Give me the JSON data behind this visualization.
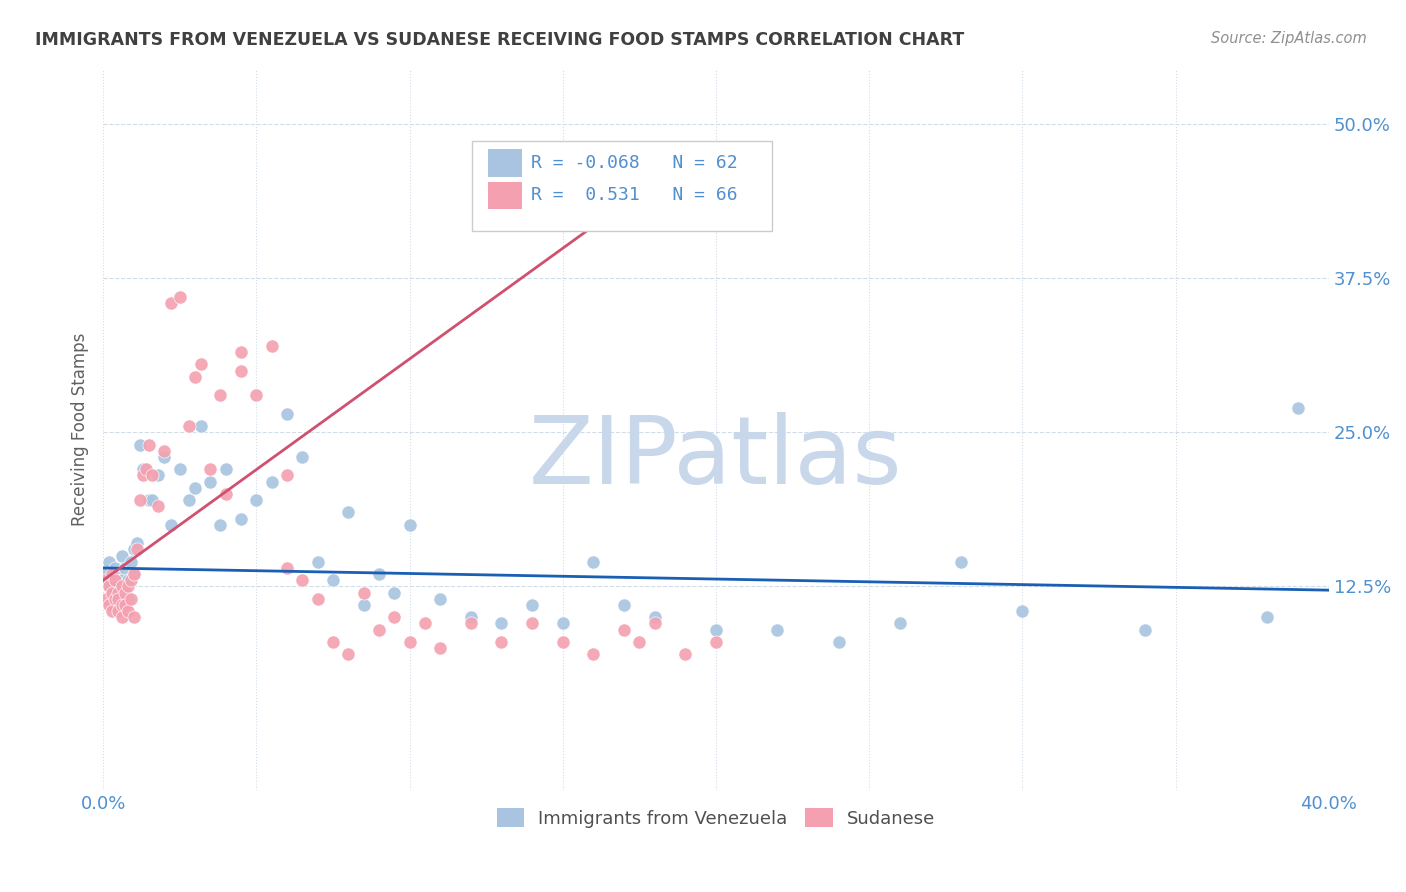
{
  "title": "IMMIGRANTS FROM VENEZUELA VS SUDANESE RECEIVING FOOD STAMPS CORRELATION CHART",
  "source": "Source: ZipAtlas.com",
  "ylabel": "Receiving Food Stamps",
  "ytick_labels": [
    "12.5%",
    "25.0%",
    "37.5%",
    "50.0%"
  ],
  "ytick_values": [
    0.125,
    0.25,
    0.375,
    0.5
  ],
  "xmin": 0.0,
  "xmax": 0.4,
  "ymin": -0.04,
  "ymax": 0.545,
  "legend_label1": "Immigrants from Venezuela",
  "legend_label2": "Sudanese",
  "R1": "-0.068",
  "N1": "62",
  "R2": "0.531",
  "N2": "66",
  "color1": "#a8c4e0",
  "color2": "#f4a0b0",
  "line_color1": "#1a5fb4",
  "line_color2": "#d05070",
  "watermark": "ZIPatlas",
  "watermark_color": "#c8d8ea",
  "background_color": "#ffffff",
  "grid_color": "#d0dce8",
  "title_color": "#404040",
  "axis_label_color": "#5090d0",
  "venezuela_x": [
    0.001,
    0.002,
    0.002,
    0.003,
    0.003,
    0.004,
    0.004,
    0.005,
    0.005,
    0.006,
    0.006,
    0.007,
    0.007,
    0.008,
    0.008,
    0.009,
    0.01,
    0.01,
    0.011,
    0.012,
    0.013,
    0.015,
    0.016,
    0.018,
    0.02,
    0.022,
    0.025,
    0.028,
    0.03,
    0.032,
    0.035,
    0.038,
    0.04,
    0.045,
    0.05,
    0.055,
    0.06,
    0.065,
    0.07,
    0.075,
    0.08,
    0.085,
    0.09,
    0.095,
    0.1,
    0.11,
    0.12,
    0.13,
    0.14,
    0.15,
    0.16,
    0.17,
    0.18,
    0.2,
    0.22,
    0.24,
    0.26,
    0.28,
    0.3,
    0.34,
    0.38,
    0.39
  ],
  "venezuela_y": [
    0.135,
    0.125,
    0.145,
    0.13,
    0.12,
    0.14,
    0.115,
    0.135,
    0.12,
    0.13,
    0.15,
    0.125,
    0.14,
    0.13,
    0.115,
    0.145,
    0.135,
    0.155,
    0.16,
    0.24,
    0.22,
    0.195,
    0.195,
    0.215,
    0.23,
    0.175,
    0.22,
    0.195,
    0.205,
    0.255,
    0.21,
    0.175,
    0.22,
    0.18,
    0.195,
    0.21,
    0.265,
    0.23,
    0.145,
    0.13,
    0.185,
    0.11,
    0.135,
    0.12,
    0.175,
    0.115,
    0.1,
    0.095,
    0.11,
    0.095,
    0.145,
    0.11,
    0.1,
    0.09,
    0.09,
    0.08,
    0.095,
    0.145,
    0.105,
    0.09,
    0.1,
    0.27
  ],
  "sudanese_x": [
    0.001,
    0.001,
    0.002,
    0.002,
    0.003,
    0.003,
    0.003,
    0.004,
    0.004,
    0.005,
    0.005,
    0.005,
    0.006,
    0.006,
    0.006,
    0.007,
    0.007,
    0.008,
    0.008,
    0.009,
    0.009,
    0.01,
    0.01,
    0.011,
    0.012,
    0.013,
    0.014,
    0.015,
    0.016,
    0.018,
    0.02,
    0.022,
    0.025,
    0.028,
    0.03,
    0.032,
    0.035,
    0.038,
    0.04,
    0.045,
    0.05,
    0.055,
    0.06,
    0.065,
    0.07,
    0.075,
    0.08,
    0.085,
    0.09,
    0.095,
    0.1,
    0.105,
    0.11,
    0.12,
    0.13,
    0.14,
    0.15,
    0.155,
    0.16,
    0.17,
    0.175,
    0.18,
    0.19,
    0.2,
    0.045,
    0.06
  ],
  "sudanese_y": [
    0.13,
    0.115,
    0.125,
    0.11,
    0.135,
    0.12,
    0.105,
    0.13,
    0.115,
    0.12,
    0.105,
    0.115,
    0.125,
    0.11,
    0.1,
    0.12,
    0.11,
    0.125,
    0.105,
    0.13,
    0.115,
    0.135,
    0.1,
    0.155,
    0.195,
    0.215,
    0.22,
    0.24,
    0.215,
    0.19,
    0.235,
    0.355,
    0.36,
    0.255,
    0.295,
    0.305,
    0.22,
    0.28,
    0.2,
    0.315,
    0.28,
    0.32,
    0.14,
    0.13,
    0.115,
    0.08,
    0.07,
    0.12,
    0.09,
    0.1,
    0.08,
    0.095,
    0.075,
    0.095,
    0.08,
    0.095,
    0.08,
    0.445,
    0.07,
    0.09,
    0.08,
    0.095,
    0.07,
    0.08,
    0.3,
    0.215
  ],
  "line1_x0": 0.0,
  "line1_x1": 0.4,
  "line1_y0": 0.14,
  "line1_y1": 0.122,
  "line2_x0": 0.0,
  "line2_x1": 0.195,
  "line2_y0": 0.13,
  "line2_y1": 0.48
}
